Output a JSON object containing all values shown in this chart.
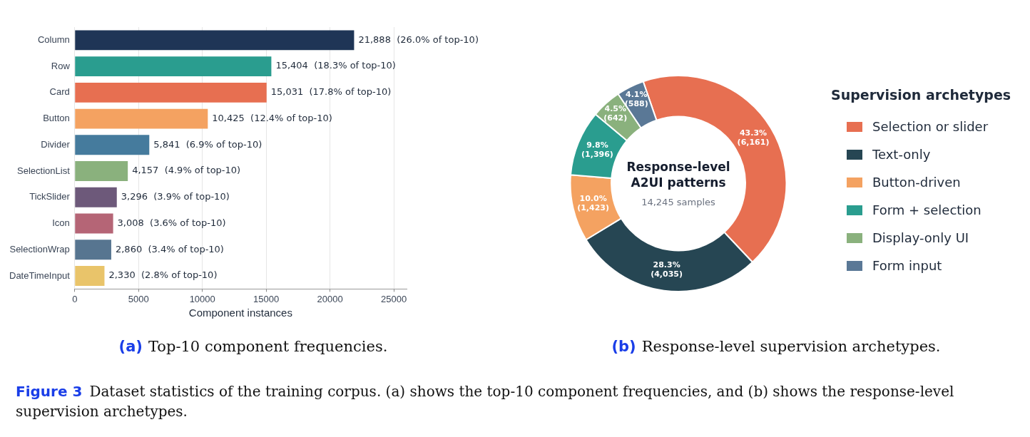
{
  "chart_data": [
    {
      "type": "bar",
      "orientation": "horizontal",
      "title": "(a) Top-10 component frequencies.",
      "xlabel": "Component instances",
      "categories": [
        "Column",
        "Row",
        "Card",
        "Button",
        "Divider",
        "SelectionList",
        "TickSlider",
        "Icon",
        "SelectionWrap",
        "DateTimeInput"
      ],
      "values": [
        21888,
        15404,
        15031,
        10425,
        5841,
        4157,
        3296,
        3008,
        2860,
        2330
      ],
      "colors": [
        "#1f3556",
        "#2a9d8f",
        "#e76f51",
        "#f4a261",
        "#457b9d",
        "#8ab17d",
        "#6d597a",
        "#b56576",
        "#577590",
        "#e9c46a"
      ],
      "value_labels": [
        "21,888  (26.0% of top-10)",
        "15,404  (18.3% of top-10)",
        "15,031  (17.8% of top-10)",
        "10,425  (12.4% of top-10)",
        "5,841  (6.9% of top-10)",
        "4,157  (4.9% of top-10)",
        "3,296  (3.9% of top-10)",
        "3,008  (3.6% of top-10)",
        "2,860  (3.4% of top-10)",
        "2,330  (2.8% of top-10)"
      ],
      "xlim": [
        0,
        26000
      ],
      "xticks": [
        0,
        5000,
        10000,
        15000,
        20000,
        25000
      ],
      "grid": "x",
      "legend": false,
      "annotations": [
        "Figure 3  Dataset statistics of the training corpus. (a) shows the top-10 component frequencies, and (b) shows the response-level supervision archetypes."
      ]
    },
    {
      "type": "donut",
      "title": "Response-level A2UI patterns",
      "subtitle": "14,245 samples",
      "legend_title": "Supervision archetypes",
      "legend": "right",
      "categories": [
        "Selection or slider",
        "Text-only",
        "Button-driven",
        "Form + selection",
        "Display-only UI",
        "Form input"
      ],
      "values": [
        6161,
        4035,
        1423,
        1396,
        642,
        588
      ],
      "colors": [
        "#e76f51",
        "#264653",
        "#f4a261",
        "#2a9d8f",
        "#8ab17d",
        "#5a7896"
      ],
      "value_labels": [
        "43.3%\n(6,161)",
        "28.3%\n(4,035)",
        "10.0%\n(1,423)",
        "9.8%\n(1,396)",
        "4.5%\n(642)",
        "4.1%\n(588)"
      ],
      "annotations": [
        "(b) Response-level supervision archetypes."
      ]
    }
  ]
}
